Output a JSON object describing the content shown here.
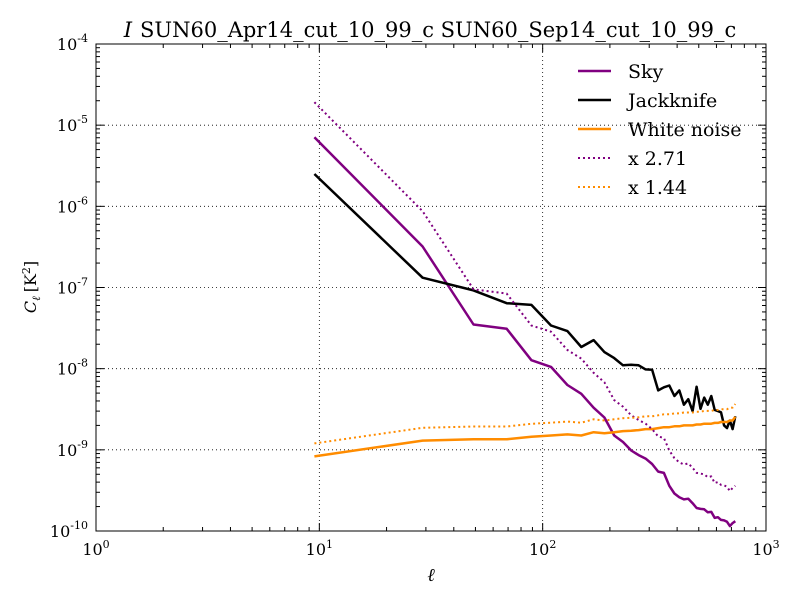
{
  "chart_data": {
    "type": "line",
    "title": "I SUN60_Apr14_cut_10_99_c SUN60_Sep14_cut_10_99_c",
    "title_parts": {
      "symbol": "I",
      "text": "SUN60_Apr14_cut_10_99_c SUN60_Sep14_cut_10_99_c"
    },
    "xlabel": "ℓ",
    "ylabel": "C",
    "ylabel_sub": "ℓ",
    "ylabel_unit": "[K",
    "ylabel_unit_sup": "2",
    "ylabel_unit_close": "]",
    "xscale": "log",
    "yscale": "log",
    "xlim": [
      1,
      1000
    ],
    "ylim": [
      1e-10,
      0.0001
    ],
    "grid": true,
    "legend_position": "top-right",
    "x_ticks": [
      {
        "value": 1,
        "base": "10",
        "exp": "0"
      },
      {
        "value": 10,
        "base": "10",
        "exp": "1"
      },
      {
        "value": 100,
        "base": "10",
        "exp": "2"
      },
      {
        "value": 1000,
        "base": "10",
        "exp": "3"
      }
    ],
    "y_ticks": [
      {
        "value": 1e-10,
        "base": "10",
        "exp": "-10"
      },
      {
        "value": 1e-09,
        "base": "10",
        "exp": "-9"
      },
      {
        "value": 1e-08,
        "base": "10",
        "exp": "-8"
      },
      {
        "value": 1e-07,
        "base": "10",
        "exp": "-7"
      },
      {
        "value": 1e-06,
        "base": "10",
        "exp": "-6"
      },
      {
        "value": 1e-05,
        "base": "10",
        "exp": "-5"
      },
      {
        "value": 0.0001,
        "base": "10",
        "exp": "-4"
      }
    ],
    "series": [
      {
        "name": "Sky",
        "color": "#800080",
        "style": "solid",
        "x": [
          9.5,
          29,
          49,
          69,
          89,
          109,
          129,
          149,
          169,
          189,
          209,
          229,
          249,
          269,
          289,
          309,
          329,
          349,
          369,
          389,
          409,
          429,
          449,
          469,
          489,
          509,
          529,
          549,
          569,
          589,
          609,
          629,
          649,
          669,
          689,
          709,
          729
        ],
        "y": [
          7.1e-06,
          3.2e-07,
          3.5e-08,
          3.1e-08,
          1.27e-08,
          1.05e-08,
          6.3e-09,
          4.9e-09,
          3.3e-09,
          2.5e-09,
          1.5e-09,
          1.25e-09,
          9.8e-10,
          8.6e-10,
          7.8e-10,
          6.7e-10,
          5.4e-10,
          5.2e-10,
          3.6e-10,
          2.9e-10,
          2.6e-10,
          2.45e-10,
          2.5e-10,
          2.2e-10,
          1.92e-10,
          1.87e-10,
          1.85e-10,
          1.7e-10,
          1.72e-10,
          1.45e-10,
          1.48e-10,
          1.37e-10,
          1.35e-10,
          1.3e-10,
          1.15e-10,
          1.25e-10,
          1.32e-10
        ]
      },
      {
        "name": "Jackknife",
        "color": "#000000",
        "style": "solid",
        "x": [
          9.5,
          29,
          49,
          69,
          89,
          109,
          129,
          149,
          169,
          189,
          209,
          229,
          249,
          269,
          289,
          309,
          329,
          349,
          369,
          389,
          409,
          429,
          449,
          469,
          489,
          509,
          529,
          549,
          569,
          589,
          609,
          629,
          649,
          669,
          689,
          709,
          729
        ],
        "y": [
          2.5e-06,
          1.32e-07,
          9.2e-08,
          6.4e-08,
          6.1e-08,
          3.4e-08,
          2.9e-08,
          1.85e-08,
          2.25e-08,
          1.6e-08,
          1.35e-08,
          1.1e-08,
          1.12e-08,
          1.1e-08,
          9.8e-09,
          9.7e-09,
          5.4e-09,
          5.9e-09,
          6.2e-09,
          4.6e-09,
          5.4e-09,
          3.6e-09,
          4.2e-09,
          3e-09,
          6e-09,
          3.2e-09,
          4.4e-09,
          3.6e-09,
          4.6e-09,
          3.1e-09,
          3e-09,
          2.9e-09,
          2e-09,
          1.85e-09,
          2.3e-09,
          1.8e-09,
          2.6e-09
        ]
      },
      {
        "name": "White noise",
        "color": "#ff8c00",
        "style": "solid",
        "x": [
          9.5,
          29,
          49,
          69,
          89,
          109,
          129,
          149,
          169,
          189,
          209,
          229,
          249,
          269,
          289,
          309,
          329,
          349,
          369,
          389,
          409,
          429,
          449,
          469,
          489,
          509,
          529,
          549,
          569,
          589,
          609,
          629,
          649,
          669,
          689,
          709,
          729
        ],
        "y": [
          8.3e-10,
          1.3e-09,
          1.35e-09,
          1.35e-09,
          1.45e-09,
          1.5e-09,
          1.55e-09,
          1.5e-09,
          1.65e-09,
          1.6e-09,
          1.65e-09,
          1.7e-09,
          1.72e-09,
          1.75e-09,
          1.8e-09,
          1.8e-09,
          1.85e-09,
          1.9e-09,
          1.9e-09,
          1.95e-09,
          1.95e-09,
          2e-09,
          2e-09,
          2e-09,
          2.05e-09,
          2.05e-09,
          2.1e-09,
          2.1e-09,
          2.1e-09,
          2.15e-09,
          2.15e-09,
          2.2e-09,
          2.2e-09,
          2.2e-09,
          2.3e-09,
          2.3e-09,
          2.55e-09
        ]
      },
      {
        "name": "x 2.71",
        "color": "#800080",
        "style": "dotted",
        "x": [
          9.5,
          29,
          49,
          69,
          89,
          109,
          129,
          149,
          169,
          189,
          209,
          229,
          249,
          269,
          289,
          309,
          329,
          349,
          369,
          389,
          409,
          429,
          449,
          469,
          489,
          509,
          529,
          549,
          569,
          589,
          609,
          629,
          649,
          669,
          689,
          709,
          729
        ],
        "y": [
          1.92e-05,
          8.7e-07,
          9.5e-08,
          8.4e-08,
          3.4e-08,
          2.85e-08,
          1.7e-08,
          1.33e-08,
          8.9e-09,
          6.8e-09,
          4.1e-09,
          3.4e-09,
          2.66e-09,
          2.33e-09,
          2.1e-09,
          1.8e-09,
          1.46e-09,
          1.4e-09,
          9.8e-10,
          7.9e-10,
          7e-10,
          6.6e-10,
          6.8e-10,
          6e-10,
          5.2e-10,
          5.1e-10,
          5e-10,
          4.6e-10,
          4.7e-10,
          3.9e-10,
          4e-10,
          3.7e-10,
          3.66e-10,
          3.5e-10,
          3.1e-10,
          3.4e-10,
          3.6e-10
        ]
      },
      {
        "name": "x 1.44",
        "color": "#ff8c00",
        "style": "dotted",
        "x": [
          9.5,
          29,
          49,
          69,
          89,
          109,
          129,
          149,
          169,
          189,
          209,
          229,
          249,
          269,
          289,
          309,
          329,
          349,
          369,
          389,
          409,
          429,
          449,
          469,
          489,
          509,
          529,
          549,
          569,
          589,
          609,
          629,
          649,
          669,
          689,
          709,
          729
        ],
        "y": [
          1.2e-09,
          1.87e-09,
          1.94e-09,
          1.94e-09,
          2.09e-09,
          2.16e-09,
          2.23e-09,
          2.16e-09,
          2.38e-09,
          2.3e-09,
          2.38e-09,
          2.45e-09,
          2.48e-09,
          2.52e-09,
          2.59e-09,
          2.59e-09,
          2.66e-09,
          2.74e-09,
          2.74e-09,
          2.81e-09,
          2.81e-09,
          2.88e-09,
          2.88e-09,
          2.88e-09,
          2.95e-09,
          2.95e-09,
          3.02e-09,
          3.02e-09,
          3.02e-09,
          3.1e-09,
          3.1e-09,
          3.17e-09,
          3.17e-09,
          3.17e-09,
          3.31e-09,
          3.31e-09,
          3.67e-09
        ]
      }
    ]
  }
}
